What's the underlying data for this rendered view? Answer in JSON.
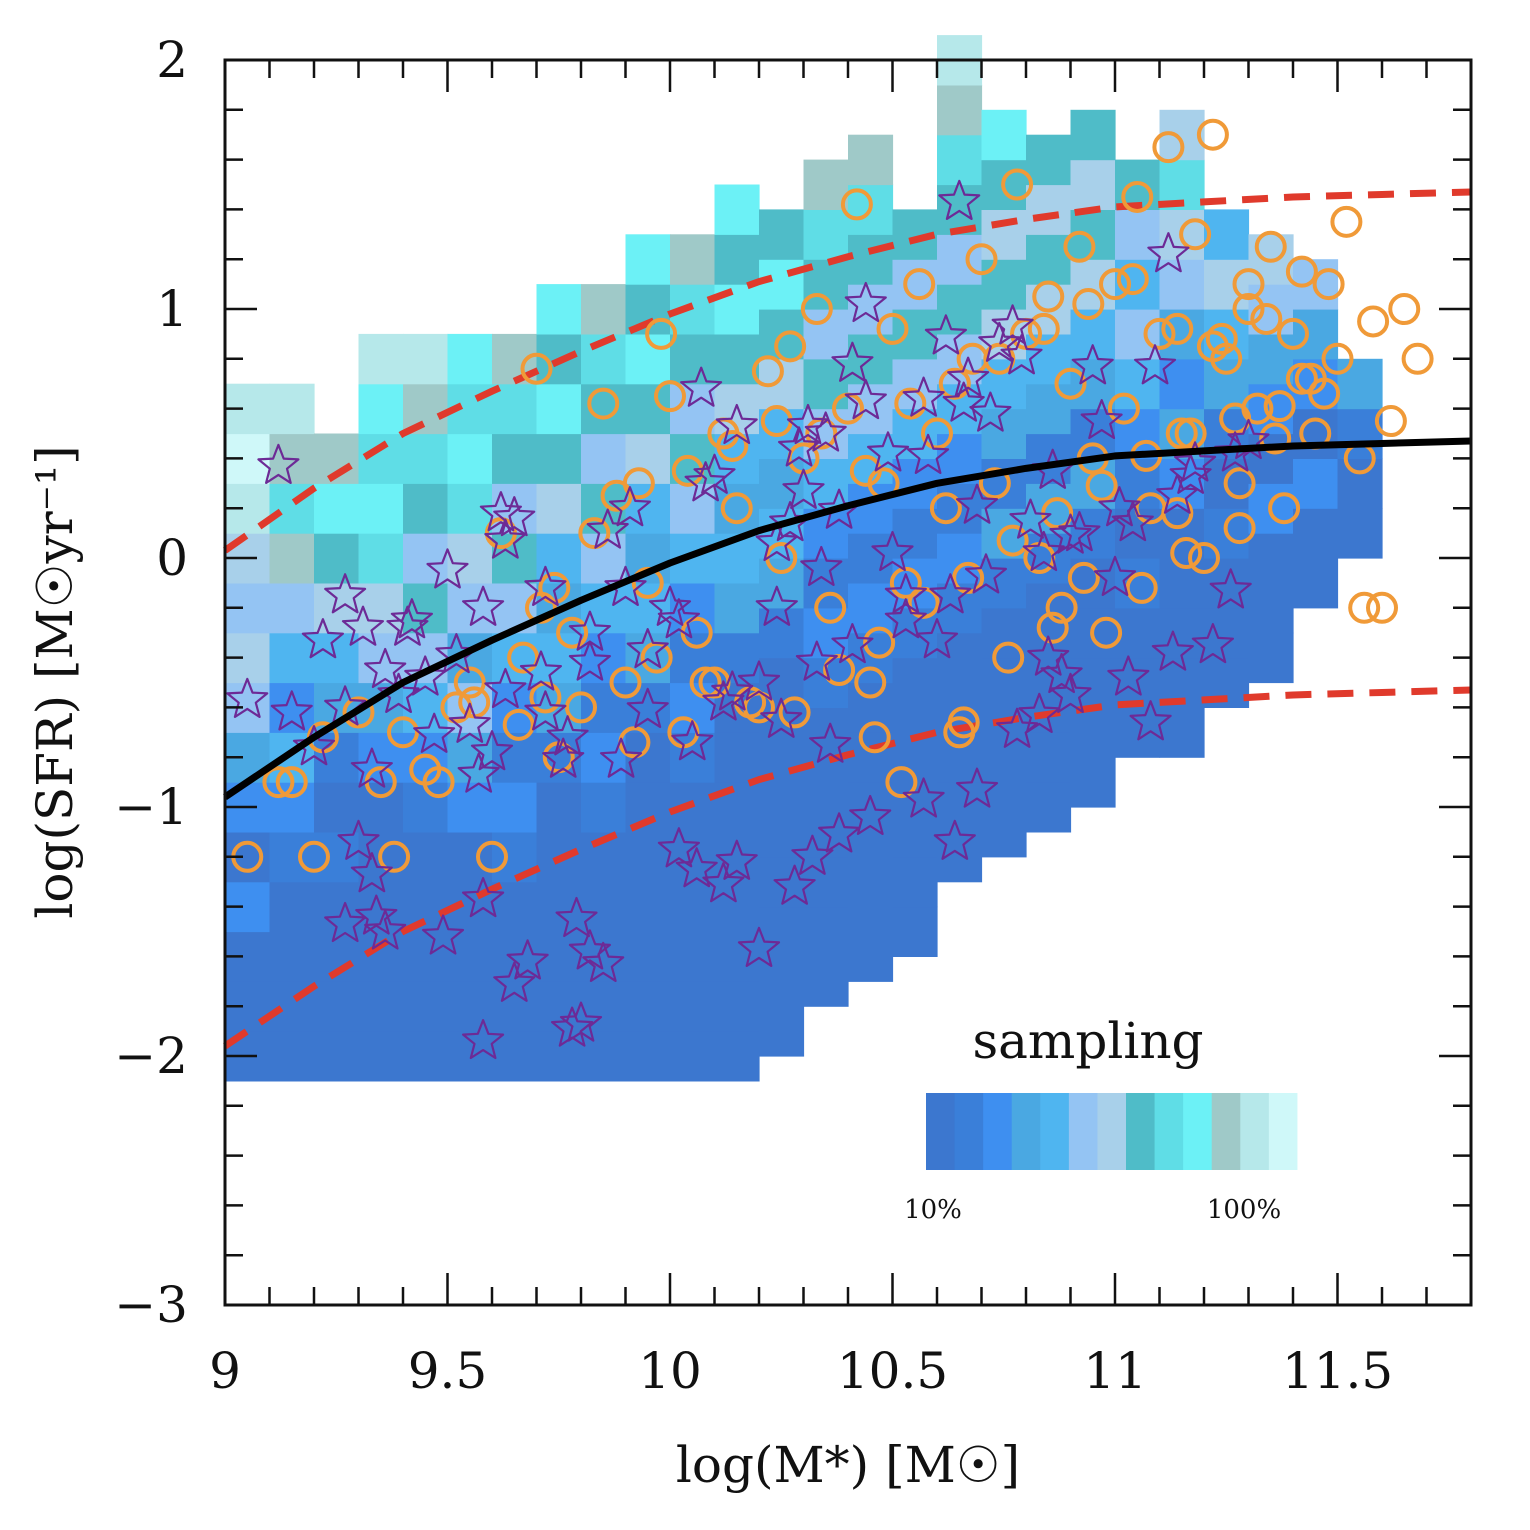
{
  "chart_data": {
    "type": "scatter",
    "title": "",
    "xlabel": "log(M*) [M☉]",
    "ylabel": "log(SFR) [M☉yr⁻¹]",
    "xlim": [
      9.0,
      11.8
    ],
    "ylim": [
      -3.0,
      2.0
    ],
    "x_ticks": [
      {
        "value": 9,
        "label": "9"
      },
      {
        "value": 9.5,
        "label": "9.5"
      },
      {
        "value": 10,
        "label": "10"
      },
      {
        "value": 10.5,
        "label": "10.5"
      },
      {
        "value": 11,
        "label": "11"
      },
      {
        "value": 11.5,
        "label": "11.5"
      }
    ],
    "y_ticks": [
      {
        "value": 2,
        "label": "2"
      },
      {
        "value": 1,
        "label": "1"
      },
      {
        "value": 0,
        "label": "0"
      },
      {
        "value": -1,
        "label": "−1"
      },
      {
        "value": -2,
        "label": "−2"
      },
      {
        "value": -3,
        "label": "−3"
      }
    ],
    "main_sequence": {
      "name": "main sequence (solid black)",
      "color": "#000000",
      "x": [
        9.0,
        9.2,
        9.4,
        9.6,
        9.8,
        10.0,
        10.2,
        10.4,
        10.6,
        10.8,
        11.0,
        11.2,
        11.4,
        11.6,
        11.8
      ],
      "y": [
        -0.96,
        -0.72,
        -0.5,
        -0.33,
        -0.17,
        -0.02,
        0.11,
        0.21,
        0.3,
        0.36,
        0.41,
        0.43,
        0.45,
        0.46,
        0.47
      ]
    },
    "scatter_bounds": {
      "name": "±1 dex (red dashed)",
      "color": "#e03a2c",
      "x": [
        9.0,
        9.2,
        9.4,
        9.6,
        9.8,
        10.0,
        10.2,
        10.4,
        10.6,
        10.8,
        11.0,
        11.2,
        11.4,
        11.6,
        11.8
      ],
      "upper": [
        0.03,
        0.28,
        0.5,
        0.67,
        0.83,
        0.98,
        1.11,
        1.21,
        1.3,
        1.36,
        1.41,
        1.43,
        1.45,
        1.46,
        1.47
      ],
      "lower": [
        -1.96,
        -1.72,
        -1.5,
        -1.33,
        -1.17,
        -1.02,
        -0.89,
        -0.79,
        -0.7,
        -0.64,
        -0.59,
        -0.57,
        -0.55,
        -0.54,
        -0.53
      ]
    },
    "sampling_map": {
      "cell_size": [
        0.1,
        0.2
      ],
      "levels": 14,
      "columns": [
        {
          "x": 9.0,
          "y_min": -2.1,
          "y_max": 0.6
        },
        {
          "x": 9.1,
          "y_min": -2.1,
          "y_max": 0.6
        },
        {
          "x": 9.2,
          "y_min": -2.1,
          "y_max": 0.5
        },
        {
          "x": 9.3,
          "y_min": -2.1,
          "y_max": 0.8
        },
        {
          "x": 9.4,
          "y_min": -2.1,
          "y_max": 0.8
        },
        {
          "x": 9.5,
          "y_min": -2.1,
          "y_max": 0.8
        },
        {
          "x": 9.6,
          "y_min": -2.1,
          "y_max": 0.9
        },
        {
          "x": 9.7,
          "y_min": -2.1,
          "y_max": 1.1
        },
        {
          "x": 9.8,
          "y_min": -2.1,
          "y_max": 1.1
        },
        {
          "x": 9.9,
          "y_min": -2.1,
          "y_max": 1.2
        },
        {
          "x": 10.0,
          "y_min": -2.1,
          "y_max": 1.3
        },
        {
          "x": 10.1,
          "y_min": -2.1,
          "y_max": 1.4
        },
        {
          "x": 10.2,
          "y_min": -2.0,
          "y_max": 1.4
        },
        {
          "x": 10.3,
          "y_min": -1.8,
          "y_max": 1.6
        },
        {
          "x": 10.4,
          "y_min": -1.7,
          "y_max": 1.6
        },
        {
          "x": 10.5,
          "y_min": -1.6,
          "y_max": 1.3
        },
        {
          "x": 10.6,
          "y_min": -1.3,
          "y_max": 2.0
        },
        {
          "x": 10.7,
          "y_min": -1.2,
          "y_max": 1.8
        },
        {
          "x": 10.8,
          "y_min": -1.1,
          "y_max": 1.6
        },
        {
          "x": 10.9,
          "y_min": -1.0,
          "y_max": 1.8
        },
        {
          "x": 11.0,
          "y_min": -0.8,
          "y_max": 1.5
        },
        {
          "x": 11.1,
          "y_min": -0.8,
          "y_max": 1.8
        },
        {
          "x": 11.2,
          "y_min": -0.6,
          "y_max": 1.4
        },
        {
          "x": 11.3,
          "y_min": -0.5,
          "y_max": 1.3
        },
        {
          "x": 11.4,
          "y_min": -0.2,
          "y_max": 1.2
        },
        {
          "x": 11.5,
          "y_min": 0.0,
          "y_max": 0.8
        }
      ]
    },
    "star_points": {
      "name": "stars (purple open)",
      "color": "#6d2a96",
      "x": [
        9.12,
        9.05,
        9.15,
        9.2,
        9.27,
        9.31,
        9.36,
        9.39,
        9.42,
        9.45,
        9.52,
        9.55,
        9.58,
        9.62,
        9.65,
        9.6,
        9.72,
        9.76,
        9.82,
        9.86,
        9.9,
        9.95,
        10.02,
        10.07,
        10.1,
        10.15,
        10.2,
        10.24,
        10.27,
        10.3,
        10.31,
        10.34,
        10.38,
        10.41,
        10.44,
        10.49,
        10.53,
        10.57,
        10.62,
        10.65,
        10.69,
        10.72,
        10.77,
        10.81,
        10.85,
        10.9,
        10.95,
        11.0,
        11.04,
        11.09,
        11.12,
        11.17,
        11.22,
        11.26,
        11.3,
        11.13,
        11.08,
        9.3,
        9.33,
        9.27,
        9.34,
        9.36,
        9.49,
        9.58,
        9.68,
        9.78,
        9.8,
        9.82,
        9.85,
        10.02,
        10.06,
        10.12,
        10.15,
        10.2,
        10.28,
        10.32,
        10.38,
        10.45,
        10.57,
        10.64,
        10.69,
        10.78,
        10.83,
        10.88,
        9.22,
        9.27,
        9.33,
        9.47,
        9.57,
        9.63,
        9.71,
        9.77,
        9.89,
        9.95,
        10.05,
        10.14,
        10.25,
        10.33,
        10.41,
        10.53,
        10.63,
        10.71,
        10.84,
        10.92,
        11.01,
        11.14,
        11.18,
        11.27,
        10.08,
        10.24,
        10.35,
        10.44,
        10.58,
        10.67,
        10.74,
        10.86,
        10.97,
        9.41,
        9.5,
        9.63,
        9.72,
        9.82,
        9.91,
        10.0,
        10.12,
        10.29,
        10.36,
        10.5,
        10.6,
        10.66,
        10.79,
        10.9,
        11.03,
        9.58,
        9.65,
        9.79
      ],
      "y": [
        0.37,
        -0.57,
        -0.62,
        -0.76,
        -0.15,
        -0.28,
        -0.45,
        -0.55,
        -0.25,
        -0.48,
        -0.39,
        -0.67,
        -0.2,
        0.18,
        0.16,
        -0.78,
        -0.62,
        -0.81,
        -0.42,
        0.11,
        -0.12,
        -0.37,
        -0.25,
        0.68,
        0.33,
        0.53,
        -0.5,
        -0.2,
        0.14,
        0.27,
        0.53,
        -0.04,
        0.19,
        0.78,
        1.02,
        0.42,
        -0.15,
        0.64,
        0.89,
        1.43,
        0.21,
        0.58,
        0.93,
        0.15,
        -0.4,
        -0.55,
        0.77,
        -0.08,
        0.14,
        0.77,
        1.22,
        0.33,
        -0.35,
        -0.13,
        0.47,
        -0.38,
        -0.66,
        -1.14,
        -1.27,
        -1.47,
        -1.44,
        -1.5,
        -1.52,
        -1.94,
        -1.62,
        -1.89,
        -1.87,
        -1.58,
        -1.63,
        -1.17,
        -1.25,
        -1.31,
        -1.22,
        -1.57,
        -1.32,
        -1.2,
        -1.11,
        -1.04,
        -0.97,
        -1.14,
        -0.93,
        -0.69,
        -0.63,
        -0.47,
        -0.33,
        -0.6,
        -0.85,
        -0.71,
        -0.87,
        -0.53,
        -0.46,
        -0.72,
        -0.81,
        -0.61,
        -0.74,
        -0.54,
        -0.65,
        -0.42,
        -0.35,
        -0.25,
        -0.15,
        -0.07,
        0.02,
        0.1,
        0.2,
        0.25,
        0.38,
        0.42,
        0.3,
        0.06,
        0.5,
        0.63,
        0.41,
        0.72,
        0.86,
        0.35,
        0.55,
        -0.28,
        -0.05,
        0.07,
        -0.12,
        -0.3,
        0.2,
        -0.2,
        -0.58,
        0.44,
        -0.75,
        0.02,
        -0.33,
        0.62,
        0.81,
        0.09,
        -0.48,
        -1.37,
        -1.71,
        -1.45
      ]
    },
    "circle_points": {
      "name": "circles (orange open)",
      "color": "#f09a38",
      "x": [
        9.05,
        9.15,
        9.2,
        9.35,
        9.38,
        9.4,
        9.48,
        9.52,
        9.55,
        9.6,
        9.62,
        9.67,
        9.7,
        9.71,
        9.75,
        9.78,
        9.8,
        9.83,
        9.85,
        9.9,
        9.93,
        9.95,
        9.98,
        10.0,
        10.03,
        10.06,
        10.1,
        10.12,
        10.15,
        10.2,
        10.22,
        10.25,
        10.27,
        10.3,
        10.33,
        10.36,
        10.4,
        10.42,
        10.45,
        10.48,
        10.5,
        10.53,
        10.56,
        10.6,
        10.62,
        10.65,
        10.68,
        10.7,
        10.73,
        10.76,
        10.78,
        10.8,
        10.83,
        10.85,
        10.88,
        10.9,
        10.92,
        10.95,
        10.98,
        11.0,
        11.02,
        11.05,
        11.08,
        11.1,
        11.12,
        11.15,
        11.18,
        11.2,
        11.22,
        11.25,
        11.28,
        11.3,
        11.32,
        11.35,
        11.38,
        11.4,
        11.42,
        11.45,
        11.48,
        11.5,
        11.52,
        11.55,
        11.58,
        11.6,
        11.62,
        11.65,
        11.68,
        9.12,
        9.22,
        9.3,
        9.45,
        9.56,
        9.66,
        9.74,
        9.88,
        9.97,
        10.08,
        10.18,
        10.28,
        10.38,
        10.47,
        10.57,
        10.67,
        10.77,
        10.87,
        10.97,
        11.07,
        11.17,
        11.27,
        11.37,
        11.47,
        10.04,
        10.14,
        10.24,
        10.34,
        10.44,
        10.54,
        10.64,
        10.74,
        10.84,
        10.94,
        11.04,
        11.14,
        11.24,
        11.34,
        11.44,
        9.72,
        9.92,
        10.46,
        10.52,
        10.66,
        10.86,
        10.93,
        11.06,
        11.16,
        11.28,
        11.56,
        11.3,
        11.14,
        11.36,
        11.22,
        11.42
      ],
      "y": [
        -1.2,
        -0.9,
        -1.2,
        -0.9,
        -1.2,
        -0.7,
        -0.9,
        -0.6,
        -0.5,
        -1.2,
        0.1,
        -0.4,
        0.76,
        -0.2,
        -0.8,
        -0.3,
        -0.6,
        0.1,
        0.62,
        -0.5,
        0.3,
        -0.1,
        0.9,
        0.65,
        -0.7,
        -0.3,
        -0.5,
        0.5,
        0.2,
        -0.6,
        0.75,
        0.0,
        0.85,
        0.4,
        1.0,
        -0.2,
        0.6,
        1.42,
        -0.5,
        0.3,
        0.92,
        -0.1,
        1.1,
        0.5,
        0.2,
        -0.7,
        0.8,
        1.2,
        0.3,
        -0.4,
        1.5,
        0.9,
        0.0,
        1.05,
        -0.2,
        0.7,
        1.25,
        0.4,
        -0.3,
        1.1,
        0.6,
        1.45,
        0.2,
        0.9,
        1.65,
        0.5,
        1.3,
        0.0,
        1.7,
        0.8,
        0.3,
        1.0,
        0.6,
        1.25,
        0.2,
        0.9,
        1.15,
        0.5,
        1.1,
        0.8,
        1.35,
        0.4,
        0.95,
        -0.2,
        0.55,
        1.0,
        0.8,
        -0.9,
        -0.72,
        -0.62,
        -0.85,
        -0.58,
        -0.67,
        -0.12,
        0.25,
        -0.4,
        -0.5,
        -0.58,
        -0.62,
        -0.45,
        -0.34,
        -0.18,
        -0.08,
        0.07,
        0.18,
        0.29,
        0.41,
        0.5,
        0.56,
        0.61,
        0.66,
        0.35,
        0.45,
        0.55,
        0.5,
        0.35,
        0.62,
        0.7,
        0.8,
        0.92,
        1.02,
        1.12,
        0.92,
        0.88,
        0.96,
        0.72,
        -0.56,
        -0.74,
        -0.72,
        -0.9,
        -0.66,
        -0.28,
        -0.08,
        -0.12,
        0.02,
        0.12,
        -0.2,
        1.1,
        0.18,
        0.48,
        0.85,
        0.72
      ]
    }
  },
  "legend": {
    "title": "sampling",
    "low_label": "10%",
    "high_label": "100%",
    "swatches": [
      "#3c77cf",
      "#3a7fd9",
      "#3e8ff0",
      "#4aa8e2",
      "#4fb5f0",
      "#94c4f3",
      "#a8d0ea",
      "#4fbcc8",
      "#5fdde6",
      "#6cf1f6",
      "#9fc9c8",
      "#b6e8ea",
      "#cff8f9",
      "#ffffff"
    ]
  }
}
